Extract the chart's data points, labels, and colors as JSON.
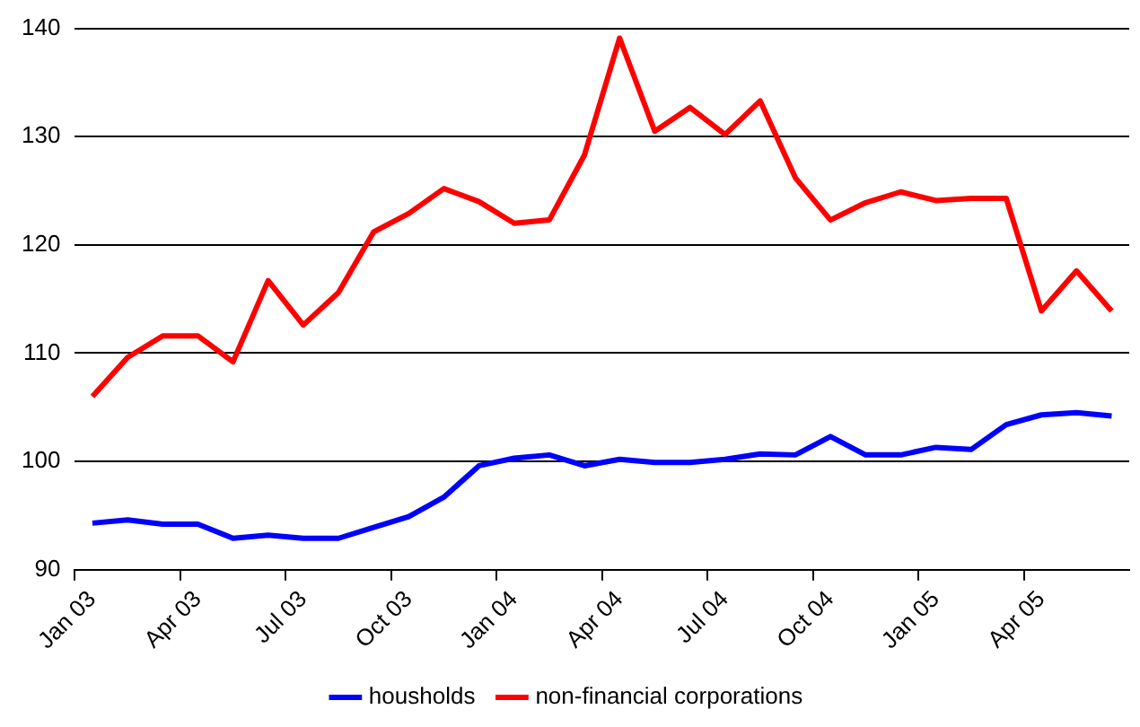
{
  "chart_data": {
    "type": "line",
    "categories": [
      "Jan 03",
      null,
      null,
      "Apr 03",
      null,
      null,
      "Jul 03",
      null,
      null,
      "Oct 03",
      null,
      null,
      "Jan 04",
      null,
      null,
      "Apr 04",
      null,
      null,
      "Jul 04",
      null,
      null,
      "Oct 04",
      null,
      null,
      "Jan 05",
      null,
      null,
      "Apr 05",
      null,
      null
    ],
    "series": [
      {
        "name": "housholds",
        "color": "#0000ff",
        "values": [
          94.3,
          94.6,
          94.2,
          94.2,
          92.9,
          93.2,
          92.9,
          92.9,
          93.9,
          94.9,
          96.7,
          99.6,
          100.3,
          100.6,
          99.6,
          100.2,
          99.9,
          99.9,
          100.2,
          100.7,
          100.6,
          102.3,
          100.6,
          100.6,
          101.3,
          101.1,
          103.4,
          104.3,
          104.5,
          104.2
        ]
      },
      {
        "name": "non-financial corporations",
        "color": "#ff0000",
        "values": [
          106.0,
          109.6,
          111.6,
          111.6,
          109.2,
          116.7,
          112.6,
          115.6,
          121.2,
          122.9,
          125.2,
          124.0,
          122.0,
          122.3,
          128.3,
          139.1,
          130.5,
          132.7,
          130.2,
          133.3,
          126.2,
          122.3,
          123.9,
          124.9,
          124.1,
          124.3,
          124.3,
          113.9,
          117.6,
          113.9
        ]
      }
    ],
    "ylim": [
      90,
      140
    ],
    "yticks": [
      90,
      100,
      110,
      120,
      130,
      140
    ],
    "grid": "y",
    "legend": "bottom",
    "marker": "none",
    "line_style": "solid"
  }
}
